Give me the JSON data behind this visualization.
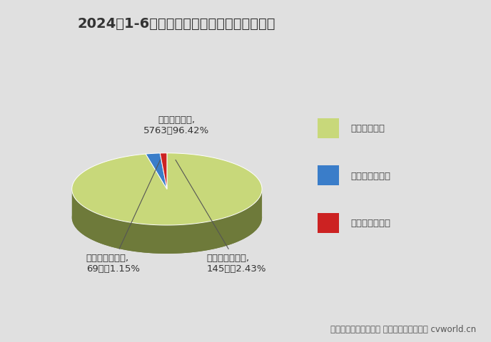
{
  "title": "2024年1-6月新能源自卸车燃料类型占比一览",
  "slices": [
    {
      "label": "纯电动自卸车",
      "value": 5763,
      "pct": 96.42,
      "color": "#c8d87a",
      "dark": "#6e7a3a"
    },
    {
      "label": "燃料电池自卸车",
      "value": 145,
      "pct": 2.43,
      "color": "#3a7dc9",
      "dark": "#1e4a80"
    },
    {
      "label": "混合动力自卸车",
      "value": 69,
      "pct": 1.15,
      "color": "#cc2222",
      "dark": "#7a1111"
    }
  ],
  "legend_labels": [
    "纯电动自卸车",
    "燃料电池自卸车",
    "混合动力自卸车"
  ],
  "legend_colors": [
    "#c8d87a",
    "#3a7dc9",
    "#cc2222"
  ],
  "label0": "纯电动自卸车,\n5763辆96.42%",
  "label1": "燃料电池自卸车,\n145辆，2.43%",
  "label2": "混合动力自卸车,\n69辆，1.15%",
  "footnote": "数据来源：交强险统计 制图：第一商用车网 cvworld.cn",
  "background_color": "#e0e0e0",
  "title_fontsize": 14,
  "footnote_fontsize": 8.5
}
